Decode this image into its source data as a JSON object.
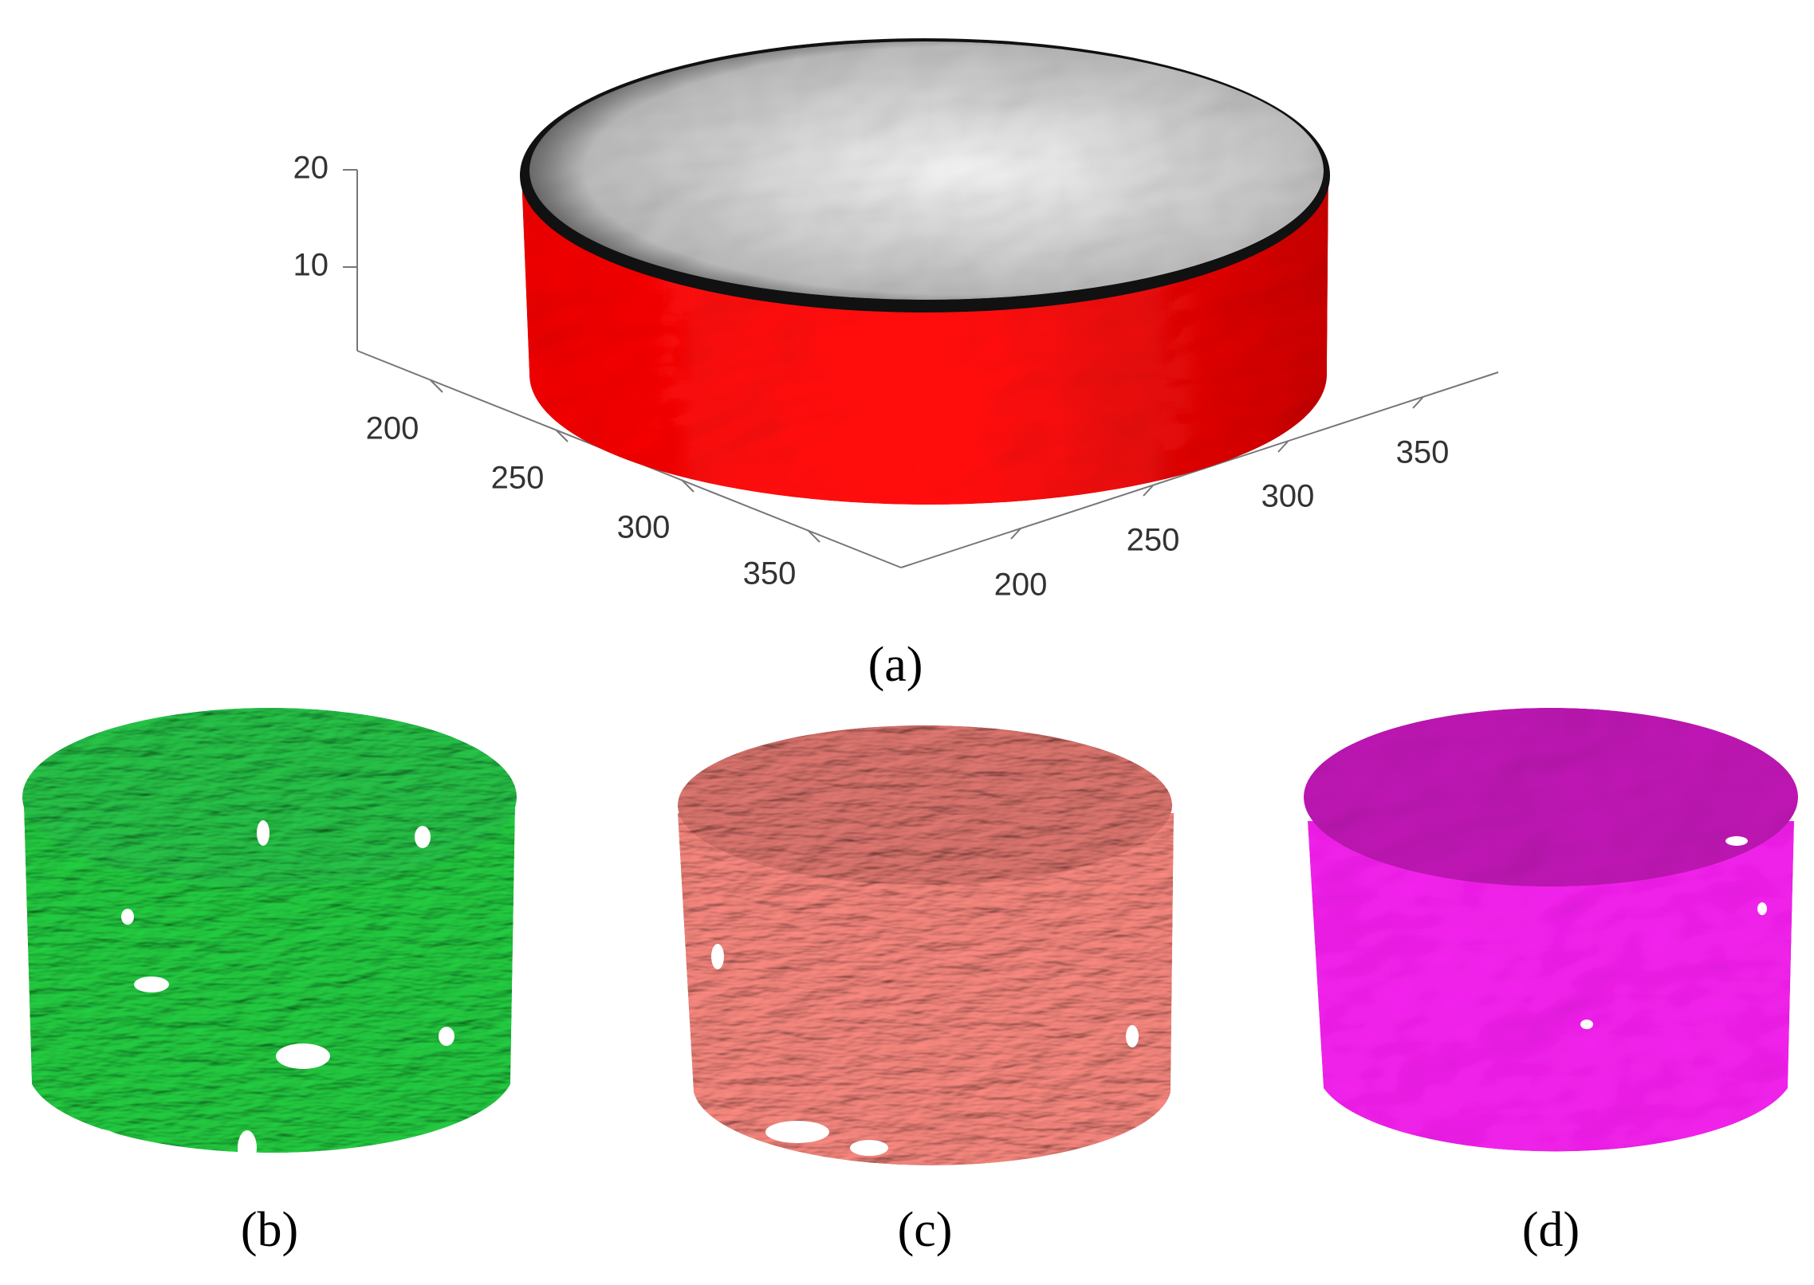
{
  "panel_a": {
    "z_ticks": [
      20,
      10
    ],
    "x_ticks": [
      200,
      250,
      300,
      350
    ],
    "y_ticks": [
      200,
      250,
      300,
      350
    ]
  },
  "labels": [
    "(a)",
    "(b)",
    "(c)",
    "(d)"
  ]
}
